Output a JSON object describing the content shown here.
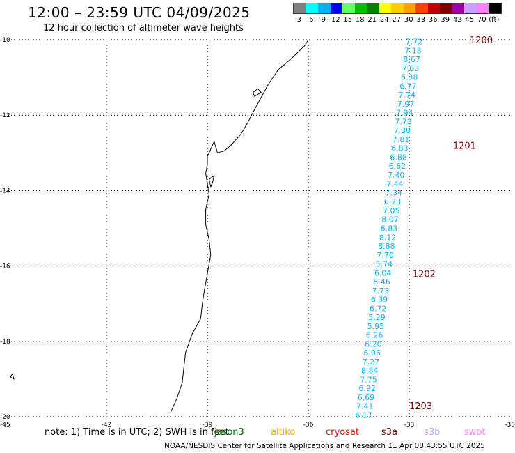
{
  "header": {
    "title": "12:00 – 23:59 UTC 04/09/2025",
    "subtitle": "12 hour collection of altimeter wave heights"
  },
  "legend": {
    "labels": [
      "3",
      "6",
      "9",
      "12",
      "15",
      "18",
      "21",
      "24",
      "27",
      "30",
      "33",
      "36",
      "39",
      "42",
      "45",
      "70",
      "(ft)"
    ],
    "colors": [
      "#808080",
      "#00ffff",
      "#00b0ff",
      "#0000ff",
      "#66ff66",
      "#00c000",
      "#008000",
      "#ffff00",
      "#ffcc00",
      "#ffa000",
      "#ff4000",
      "#c00000",
      "#800000",
      "#a000a0",
      "#c8a0ff",
      "#ff80ff",
      "#000000"
    ]
  },
  "footer": {
    "note": "note: 1) Time is in UTC; 2) SWH is in feet",
    "credit": "NOAA/NESDIS Center for Satellite Applications and Research   11 Apr 08:43:55 UTC 2025",
    "satellites": [
      {
        "name": "jason3",
        "color": "#008000"
      },
      {
        "name": "altiko",
        "color": "#ffa000"
      },
      {
        "name": "cryosat",
        "color": "#ff0000"
      },
      {
        "name": "s3a",
        "color": "#800000"
      },
      {
        "name": "s3b",
        "color": "#c8a0ff"
      },
      {
        "name": "swot",
        "color": "#ff80ff"
      }
    ]
  },
  "chart_data": {
    "type": "scatter",
    "xlim": [
      -45,
      -30
    ],
    "ylim": [
      -20,
      -10
    ],
    "x_ticks": [
      "-45",
      "-42",
      "-39",
      "-36",
      "-33",
      "-30"
    ],
    "y_ticks": [
      "-10",
      "-12",
      "-14",
      "-16",
      "-18",
      "-20"
    ],
    "grid": true,
    "point_color": "#00b0ff",
    "time_label_color": "#800000",
    "track": {
      "start": [
        -32.6,
        -10.05
      ],
      "end": [
        -34.1,
        -19.95
      ],
      "values": [
        "7.72",
        "7.18",
        "8.67",
        "7.63",
        "6.38",
        "6.77",
        "7.74",
        "7.97",
        "7.94",
        "7.73",
        "7.38",
        "7.81",
        "6.83",
        "6.88",
        "6.62",
        "7.40",
        "7.44",
        "7.34",
        "6.23",
        "7.05",
        "8.07",
        "6.83",
        "8.12",
        "8.88",
        "7.70",
        "5.74",
        "6.04",
        "8.46",
        "7.73",
        "6.39",
        "6.72",
        "5.29",
        "5.95",
        "6.26",
        "6.20",
        "6.06",
        "7.27",
        "8.84",
        "7.75",
        "6.92",
        "6.69",
        "7.41",
        "6.17"
      ]
    },
    "time_labels": [
      {
        "text": "1200",
        "x": -31.2,
        "y": -10.0
      },
      {
        "text": "1201",
        "x": -31.7,
        "y": -12.8
      },
      {
        "text": "1202",
        "x": -32.9,
        "y": -16.2
      },
      {
        "text": "1203",
        "x": -33.0,
        "y": -19.7
      }
    ],
    "coastline": [
      [
        -36.0,
        -10.0
      ],
      [
        -36.1,
        -10.15
      ],
      [
        -36.5,
        -10.5
      ],
      [
        -36.9,
        -10.8
      ],
      [
        -37.2,
        -11.2
      ],
      [
        -37.35,
        -11.45
      ],
      [
        -37.6,
        -11.85
      ],
      [
        -37.8,
        -12.2
      ],
      [
        -38.0,
        -12.5
      ],
      [
        -38.3,
        -12.8
      ],
      [
        -38.5,
        -12.95
      ],
      [
        -38.7,
        -13.0
      ],
      [
        -38.8,
        -12.7
      ],
      [
        -38.9,
        -12.9
      ],
      [
        -39.0,
        -13.1
      ],
      [
        -39.0,
        -13.3
      ],
      [
        -39.05,
        -13.55
      ],
      [
        -39.0,
        -13.8
      ],
      [
        -38.95,
        -14.1
      ],
      [
        -39.05,
        -14.5
      ],
      [
        -39.05,
        -14.9
      ],
      [
        -38.95,
        -15.3
      ],
      [
        -38.9,
        -15.7
      ],
      [
        -39.0,
        -16.2
      ],
      [
        -39.1,
        -16.7
      ],
      [
        -39.15,
        -17.0
      ],
      [
        -39.2,
        -17.4
      ],
      [
        -39.45,
        -17.8
      ],
      [
        -39.65,
        -18.3
      ],
      [
        -39.7,
        -18.7
      ],
      [
        -39.75,
        -19.1
      ],
      [
        -39.9,
        -19.5
      ],
      [
        -40.1,
        -19.9
      ]
    ],
    "islands": [
      [
        [
          -37.65,
          -11.4
        ],
        [
          -37.5,
          -11.3
        ],
        [
          -37.4,
          -11.4
        ],
        [
          -37.6,
          -11.5
        ],
        [
          -37.65,
          -11.4
        ]
      ],
      [
        [
          -38.8,
          -13.6
        ],
        [
          -38.95,
          -13.7
        ],
        [
          -38.9,
          -13.9
        ],
        [
          -38.85,
          -13.8
        ],
        [
          -38.8,
          -13.6
        ]
      ],
      [
        [
          -44.8,
          -18.85
        ],
        [
          -44.85,
          -18.95
        ],
        [
          -44.75,
          -19.0
        ],
        [
          -44.8,
          -18.85
        ]
      ]
    ]
  }
}
